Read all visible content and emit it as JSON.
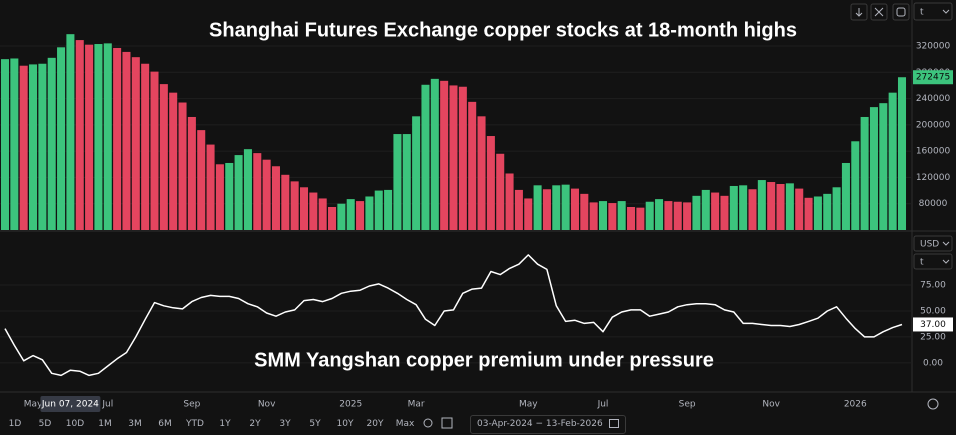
{
  "chart_data": [
    {
      "type": "bar",
      "title": "Shanghai Futures Exchange copper stocks at 18-month highs",
      "unit": "t",
      "values": [
        300000,
        301000,
        290000,
        292000,
        293000,
        302000,
        318000,
        338000,
        329000,
        322000,
        323000,
        324000,
        317000,
        311000,
        303000,
        293000,
        281000,
        262000,
        249000,
        234000,
        212000,
        192000,
        170000,
        140000,
        142000,
        154000,
        163000,
        157000,
        147000,
        137000,
        124000,
        114000,
        105000,
        97000,
        88000,
        75000,
        80000,
        87000,
        84000,
        91000,
        100000,
        101000,
        186000,
        186000,
        213000,
        261000,
        270000,
        267000,
        260000,
        258000,
        235000,
        213000,
        183000,
        156000,
        126000,
        101000,
        88000,
        108000,
        102000,
        108000,
        109000,
        103000,
        95000,
        82000,
        84000,
        81000,
        84000,
        75000,
        74000,
        83000,
        87000,
        84000,
        83000,
        82000,
        92000,
        101000,
        97000,
        92000,
        107000,
        108000,
        102000,
        116000,
        113000,
        110000,
        111000,
        103000,
        89000,
        91000,
        95000,
        105000,
        142000,
        175000,
        212000,
        227000,
        233000,
        249000,
        272475
      ],
      "up_color": "#3cc47d",
      "down_color": "#e4455f",
      "ylim": [
        40000,
        390000
      ],
      "yticks": [
        80000,
        120000,
        160000,
        200000,
        240000,
        280000,
        320000
      ],
      "grid": true
    },
    {
      "type": "line",
      "title": "SMM Yangshan copper premium under pressure",
      "currency": "USD",
      "unit": "t",
      "categories": [
        null,
        null,
        null,
        "May",
        null,
        null,
        null,
        null,
        null,
        null,
        null,
        "Jul",
        null,
        null,
        null,
        null,
        null,
        null,
        null,
        null,
        "Sep",
        null,
        null,
        null,
        null,
        null,
        null,
        null,
        "Nov",
        null,
        null,
        null,
        null,
        null,
        null,
        null,
        null,
        "2025",
        null,
        null,
        null,
        null,
        null,
        null,
        "Mar",
        null,
        null,
        null,
        null,
        null,
        null,
        null,
        null,
        null,
        null,
        null,
        "May",
        null,
        null,
        null,
        null,
        null,
        null,
        null,
        "Jul",
        null,
        null,
        null,
        null,
        null,
        null,
        null,
        null,
        "Sep",
        null,
        null,
        null,
        null,
        null,
        null,
        null,
        null,
        "Nov",
        null,
        null,
        null,
        null,
        null,
        null,
        null,
        null,
        "2026",
        null,
        null,
        null,
        null,
        null
      ],
      "values": [
        33,
        17,
        2,
        7,
        3,
        -10,
        -12,
        -7,
        -8,
        -12,
        -10,
        -3,
        4,
        10,
        25,
        42,
        58,
        55,
        53,
        52,
        59,
        63,
        65,
        64,
        64,
        62,
        57,
        54,
        48,
        45,
        49,
        51,
        60,
        61,
        59,
        62,
        67,
        69,
        70,
        74,
        76,
        72,
        67,
        61,
        56,
        42,
        36,
        50,
        51,
        67,
        71,
        72,
        88,
        85,
        91,
        95,
        104,
        95,
        90,
        55,
        40,
        41,
        38,
        39,
        30,
        44,
        49,
        51,
        51,
        45,
        47,
        49,
        54,
        56,
        57,
        57,
        56,
        51,
        49,
        38,
        38,
        37,
        36,
        36,
        35,
        37,
        40,
        43,
        50,
        54,
        43,
        33,
        25,
        25,
        30,
        34,
        37
      ],
      "color": "#ffffff",
      "last_value_label": "37.00",
      "crosshair_label": "Jun 07, 2024",
      "ylim": [
        -28,
        126
      ],
      "yticks": [
        {
          "value": 0,
          "label": "0.00"
        },
        {
          "value": 25,
          "label": "25.00"
        },
        {
          "value": 50,
          "label": "50.00"
        },
        {
          "value": 75,
          "label": "75.00"
        }
      ],
      "grid": true
    }
  ],
  "toolbar": {
    "ranges": [
      "1D",
      "5D",
      "10D",
      "1M",
      "3M",
      "6M",
      "YTD",
      "1Y",
      "2Y",
      "3Y",
      "5Y",
      "10Y",
      "20Y",
      "Max"
    ],
    "date_range": "03-Apr-2024 − 13-Feb-2026"
  }
}
